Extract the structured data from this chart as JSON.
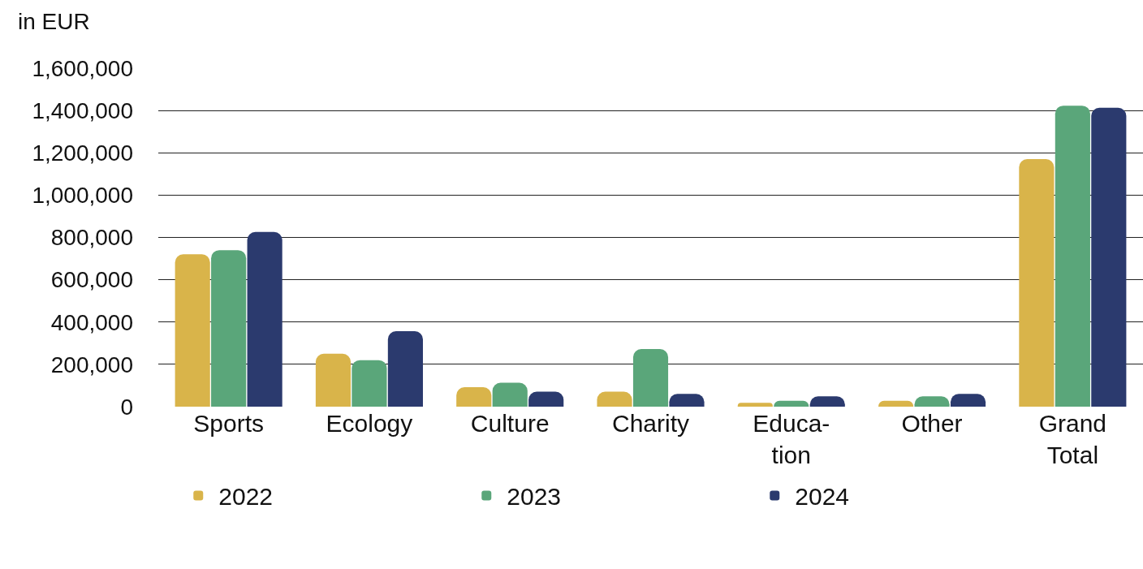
{
  "chart_data": {
    "type": "bar",
    "ylabel": "in EUR",
    "categories": [
      "Sports",
      "Ecology",
      "Culture",
      "Charity",
      "Educa-\ntion",
      "Other",
      "Grand\nTotal"
    ],
    "series": [
      {
        "name": "2022",
        "color": "#d9b44a",
        "values": [
          720000,
          250000,
          92000,
          71000,
          18000,
          28000,
          1170000
        ]
      },
      {
        "name": "2023",
        "color": "#5aa67a",
        "values": [
          740000,
          220000,
          113000,
          272000,
          28000,
          49000,
          1423000
        ]
      },
      {
        "name": "2024",
        "color": "#2b3a6e",
        "values": [
          826000,
          357000,
          71000,
          60000,
          49000,
          60000,
          1413000
        ]
      }
    ],
    "ylim": [
      0,
      1600000
    ],
    "yticks": [
      {
        "value": 0,
        "label": "0"
      },
      {
        "value": 200000,
        "label": "200,000"
      },
      {
        "value": 400000,
        "label": "400,000"
      },
      {
        "value": 600000,
        "label": "600,000"
      },
      {
        "value": 800000,
        "label": "800,000"
      },
      {
        "value": 1000000,
        "label": "1,000,000"
      },
      {
        "value": 1200000,
        "label": "1,200,000"
      },
      {
        "value": 1400000,
        "label": "1,400,000"
      },
      {
        "value": 1600000,
        "label": "1,600,000"
      }
    ],
    "grid": "y",
    "legend": "bottom"
  }
}
